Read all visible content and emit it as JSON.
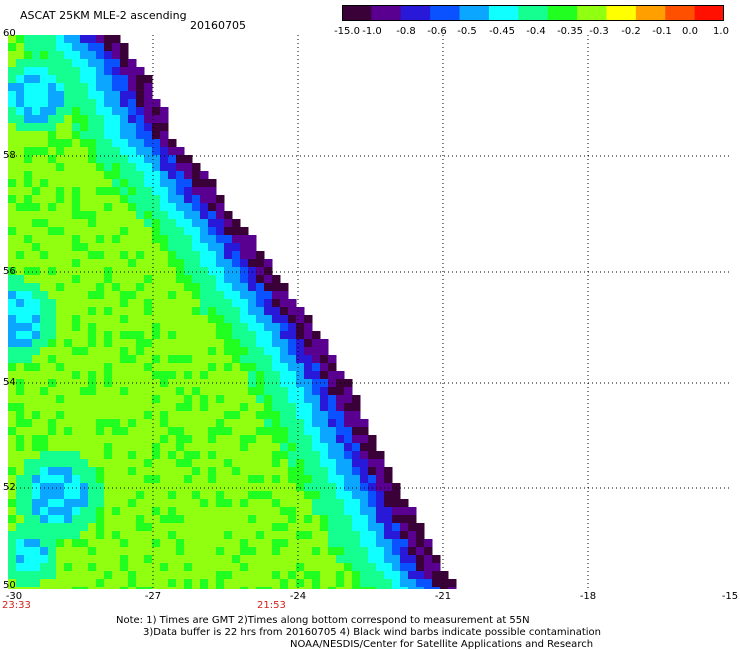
{
  "title": "ASCAT 25KM MLE-2 ascending",
  "date": "20160705",
  "colorbar": {
    "labels": [
      "-15.0",
      "-1.0",
      "-0.8",
      "-0.6",
      "-0.5",
      "-0.45",
      "-0.4",
      "-0.35",
      "-0.3",
      "-0.2",
      "-0.1",
      "0.0",
      "1.0"
    ],
    "colors": [
      "#3a0038",
      "#5a0090",
      "#2818d8",
      "#0a52ff",
      "#0aa6ff",
      "#10ffff",
      "#14ff90",
      "#20ff20",
      "#90ff10",
      "#ffff00",
      "#ffa000",
      "#ff5000",
      "#ff1000"
    ]
  },
  "map": {
    "lon_labels": [
      "-30",
      "-27",
      "-24",
      "-21",
      "-18",
      "-15"
    ],
    "lat_labels": [
      "50",
      "52",
      "54",
      "56",
      "58",
      "60"
    ],
    "time_labels": [
      "23:33",
      "21:53"
    ],
    "gridline_color": "#000000",
    "time_label_color": "#d0201a"
  },
  "notes": {
    "line1": "Note: 1) Times are GMT 2)Times along bottom correspond to measurement at 55N",
    "line2": "3)Data buffer is 22 hrs from 20160705 4) Black wind barbs indicate possible contamination",
    "line3": "NOAA/NESDIS/Center for Satellite Applications and Research"
  }
}
